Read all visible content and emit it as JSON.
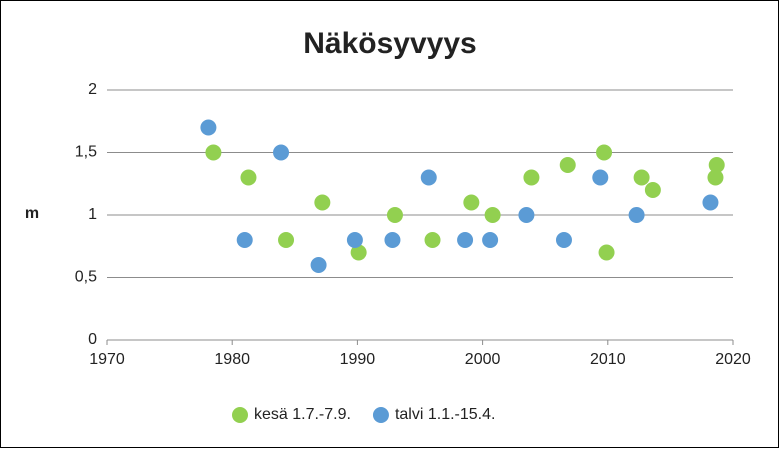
{
  "chart_data": {
    "type": "scatter",
    "title": "Näkösyvyys",
    "y_label": "m",
    "series": [
      {
        "name": "kesä 1.7.-7.9.",
        "color": "#92d050",
        "x": [
          1978.5,
          1981.3,
          1984.3,
          1987.2,
          1990.1,
          1993.0,
          1996.0,
          1999.1,
          2000.8,
          2003.9,
          2006.8,
          2009.7,
          2009.9,
          2012.7,
          2013.6,
          2018.6,
          2018.7
        ],
        "values": [
          1.5,
          1.3,
          0.8,
          1.1,
          0.7,
          1.0,
          0.8,
          1.1,
          1.0,
          1.3,
          1.4,
          1.5,
          0.7,
          1.3,
          1.2,
          1.3,
          1.4
        ]
      },
      {
        "name": "talvi 1.1.-15.4.",
        "color": "#5b9bd5",
        "x": [
          1978.1,
          1981.0,
          1983.9,
          1986.9,
          1989.8,
          1992.8,
          1995.7,
          1998.6,
          2000.6,
          2003.5,
          2006.5,
          2009.4,
          2012.3,
          2018.2
        ],
        "values": [
          1.7,
          0.8,
          1.5,
          0.6,
          0.8,
          0.8,
          1.3,
          0.8,
          0.8,
          1.0,
          0.8,
          1.3,
          1.0,
          1.1
        ]
      }
    ],
    "xlim": [
      1970,
      2020
    ],
    "xticks": [
      1970,
      1980,
      1990,
      2000,
      2010,
      2020
    ],
    "ylim": [
      0,
      2
    ],
    "yticks": [
      0,
      {
        "value": 0.5,
        "label": "0,5"
      },
      1,
      {
        "value": 1.5,
        "label": "1,5"
      },
      2
    ],
    "grid": true,
    "legend": "bottom"
  }
}
